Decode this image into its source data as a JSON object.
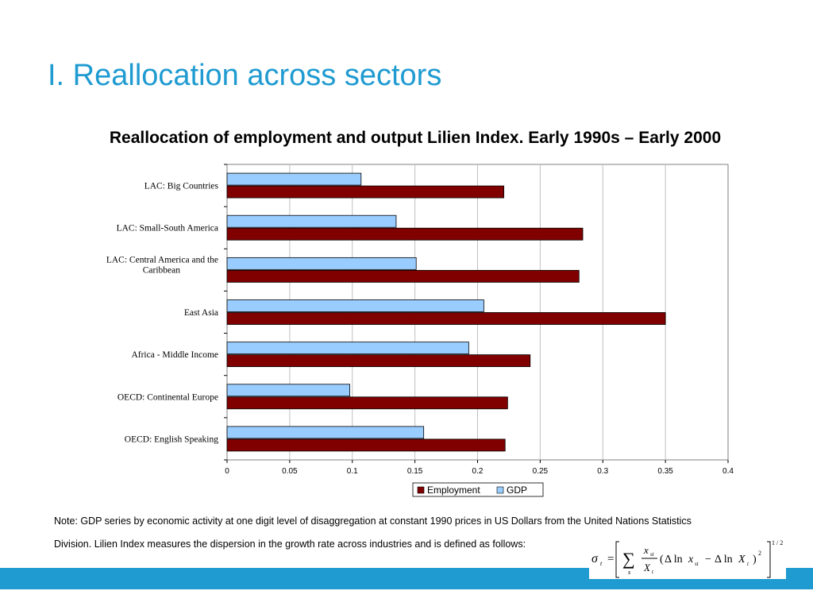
{
  "slide": {
    "title": "I. Reallocation across sectors",
    "note_line1": "Note: GDP series by economic activity at one digit level of disaggregation at constant 1990 prices in US Dollars from the United Nations Statistics",
    "note_line2": "Division. Lilien Index measures the dispersion in the growth rate across industries and is defined as follows:"
  },
  "colors": {
    "accent": "#1f9bd1",
    "employment": "#800000",
    "gdp": "#99ccff",
    "grid": "#c0c0c0"
  },
  "chart_data": {
    "type": "bar",
    "orientation": "horizontal",
    "title": "Reallocation of employment and output Lilien Index. Early 1990s – Early 2000",
    "categories": [
      [
        "LAC: Big Countries"
      ],
      [
        "LAC: Small-South America"
      ],
      [
        "LAC: Central America and the",
        "Caribbean"
      ],
      [
        "East Asia"
      ],
      [
        "Africa - Middle Income"
      ],
      [
        "OECD: Continental Europe"
      ],
      [
        "OECD: English Speaking"
      ]
    ],
    "series": [
      {
        "name": "GDP",
        "color": "#99ccff",
        "values": [
          0.107,
          0.135,
          0.151,
          0.205,
          0.193,
          0.098,
          0.157
        ]
      },
      {
        "name": "Employment",
        "color": "#800000",
        "values": [
          0.221,
          0.284,
          0.281,
          0.35,
          0.242,
          0.224,
          0.222
        ]
      }
    ],
    "xlim": [
      0,
      0.4
    ],
    "xticks": [
      "0",
      "0.05",
      "0.1",
      "0.15",
      "0.2",
      "0.25",
      "0.3",
      "0.35",
      "0.4"
    ],
    "grid": true,
    "legend": {
      "position": "bottom",
      "order": [
        "Employment",
        "GDP"
      ]
    }
  },
  "formula": {
    "sigma": "σ",
    "sub_t": "t",
    "equals": "=",
    "sum": "∑",
    "sum_index": "s",
    "num": "x",
    "num_sub": "st",
    "den": "X",
    "den_sub": "t",
    "open_paren": "(",
    "delta_ln": "Δ ln",
    "x": "x",
    "x_sub": "st",
    "minus": "−",
    "delta_ln2": "Δ ln",
    "X": "X",
    "X_sub": "t",
    "close_paren": ")",
    "square": "2",
    "power": "1 / 2"
  }
}
